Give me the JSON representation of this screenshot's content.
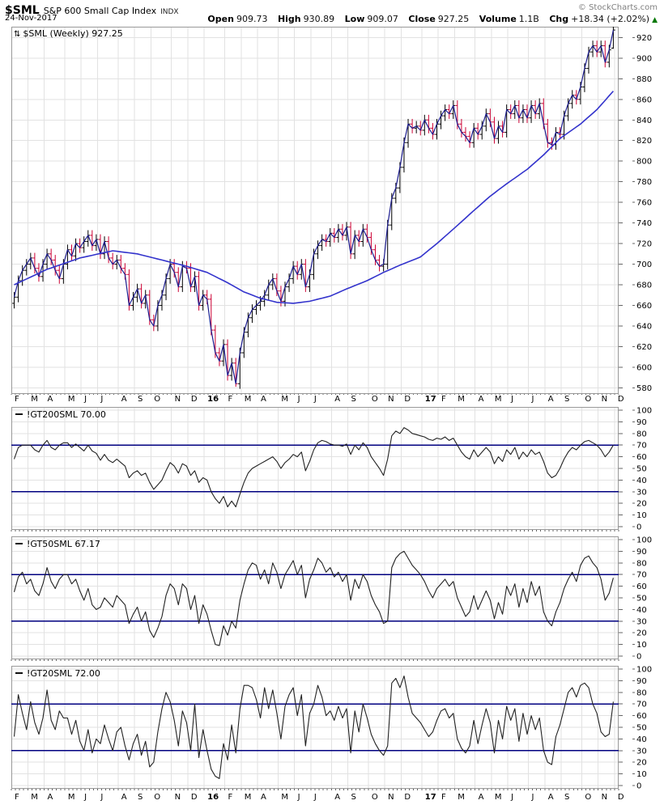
{
  "header": {
    "symbol": "$SML",
    "title": "S&P 600 Small Cap Index",
    "exchange": "INDX",
    "date": "24-Nov-2017",
    "copyright": "© StockCharts.com"
  },
  "quote": {
    "open_label": "Open",
    "open": "909.73",
    "high_label": "High",
    "high": "930.89",
    "low_label": "Low",
    "low": "909.07",
    "close_label": "Close",
    "close": "927.25",
    "volume_label": "Volume",
    "volume": "1.1B",
    "chg_label": "Chg",
    "chg": "+18.34 (+2.02%)",
    "chg_direction": "up",
    "chg_triangle": "▲"
  },
  "colors": {
    "up_bar": "#000000",
    "down_bar": "#cc0033",
    "close_line": "#1c1c8f",
    "ma_line": "#3333cc",
    "threshold_line": "#000080",
    "indicator_line": "#222222",
    "grid": "#e2e2e2",
    "border": "#999999",
    "tick": "#666666",
    "chg_up": "#007700"
  },
  "axis": {
    "month_labels": [
      "F",
      "M",
      "A",
      "M",
      "J",
      "J",
      "A",
      "S",
      "O",
      "N",
      "D",
      "16",
      "F",
      "M",
      "A",
      "M",
      "J",
      "J",
      "A",
      "S",
      "O",
      "N",
      "D",
      "17",
      "F",
      "M",
      "A",
      "M",
      "J",
      "J",
      "A",
      "S",
      "O",
      "N",
      "D"
    ],
    "month_weeks": [
      0,
      4,
      8,
      13,
      17,
      21,
      26,
      30,
      34,
      39,
      43,
      47,
      52,
      56,
      60,
      65,
      69,
      73,
      78,
      82,
      87,
      91,
      95,
      100,
      104,
      108,
      113,
      117,
      121,
      126,
      130,
      134,
      139,
      143,
      147
    ],
    "bold_indices": [
      11,
      23
    ],
    "total_weeks": 148
  },
  "chart_data": [
    {
      "type": "ohlc",
      "name": "$SML",
      "period": "Weekly",
      "legend": "$SML (Weekly) 927.25",
      "legend_icon": "⇅",
      "ylim": [
        574,
        930.5
      ],
      "yticks_min": 580,
      "yticks_max": 920,
      "ytick_step": 20,
      "first_prev_close": 662,
      "bar_spread": 5,
      "closes": [
        668,
        684,
        694,
        700,
        706,
        696,
        688,
        700,
        710,
        704,
        694,
        686,
        700,
        714,
        708,
        720,
        716,
        722,
        728,
        718,
        724,
        710,
        722,
        706,
        700,
        704,
        696,
        690,
        660,
        668,
        676,
        662,
        670,
        646,
        640,
        660,
        670,
        686,
        700,
        692,
        678,
        698,
        696,
        678,
        688,
        660,
        670,
        666,
        636,
        614,
        606,
        622,
        592,
        604,
        584,
        614,
        634,
        648,
        656,
        660,
        664,
        670,
        680,
        686,
        674,
        664,
        678,
        686,
        698,
        690,
        700,
        678,
        690,
        710,
        718,
        724,
        722,
        730,
        726,
        734,
        728,
        736,
        710,
        728,
        722,
        734,
        726,
        714,
        704,
        698,
        700,
        738,
        764,
        774,
        794,
        818,
        836,
        832,
        834,
        830,
        840,
        832,
        826,
        836,
        844,
        850,
        846,
        854,
        836,
        828,
        824,
        818,
        832,
        826,
        834,
        846,
        838,
        822,
        834,
        828,
        850,
        846,
        854,
        842,
        850,
        842,
        854,
        846,
        856,
        836,
        818,
        816,
        828,
        826,
        844,
        856,
        864,
        860,
        872,
        890,
        906,
        912,
        906,
        912,
        896,
        908,
        927.25
      ],
      "last_ohlc": [
        909.73,
        930.89,
        909.07,
        927.25
      ],
      "low_override": {
        "54": 581
      },
      "ma_anchors": [
        [
          0,
          680
        ],
        [
          8,
          695
        ],
        [
          16,
          706
        ],
        [
          24,
          713
        ],
        [
          30,
          710
        ],
        [
          36,
          704
        ],
        [
          42,
          698
        ],
        [
          47,
          692
        ],
        [
          52,
          682
        ],
        [
          56,
          673
        ],
        [
          60,
          667
        ],
        [
          64,
          663
        ],
        [
          68,
          662
        ],
        [
          72,
          664
        ],
        [
          77,
          669
        ],
        [
          81,
          676
        ],
        [
          86,
          684
        ],
        [
          90,
          692
        ],
        [
          94,
          699
        ],
        [
          99,
          707
        ],
        [
          103,
          720
        ],
        [
          107,
          734
        ],
        [
          112,
          752
        ],
        [
          116,
          766
        ],
        [
          120,
          778
        ],
        [
          125,
          792
        ],
        [
          129,
          806
        ],
        [
          133,
          822
        ],
        [
          138,
          836
        ],
        [
          142,
          850
        ],
        [
          146,
          868
        ]
      ]
    },
    {
      "type": "line",
      "name": "!GT200SML",
      "legend": "!GT200SML 70.00",
      "last": 70.0,
      "ylim": [
        0,
        100
      ],
      "ytick_step": 10,
      "hlines": [
        70,
        30
      ],
      "values": [
        58,
        68,
        70,
        70,
        70,
        66,
        64,
        70,
        74,
        68,
        66,
        70,
        72,
        72,
        68,
        71,
        68,
        65,
        70,
        65,
        63,
        57,
        62,
        57,
        55,
        58,
        55,
        52,
        42,
        46,
        48,
        44,
        46,
        38,
        32,
        36,
        40,
        48,
        55,
        52,
        46,
        54,
        52,
        44,
        48,
        38,
        42,
        40,
        30,
        24,
        20,
        26,
        17,
        22,
        17,
        28,
        38,
        46,
        50,
        52,
        54,
        56,
        58,
        60,
        56,
        50,
        55,
        58,
        62,
        60,
        64,
        48,
        56,
        66,
        72,
        74,
        73,
        71,
        70,
        70,
        69,
        71,
        62,
        70,
        66,
        72,
        68,
        60,
        55,
        50,
        44,
        58,
        78,
        82,
        80,
        85,
        83,
        80,
        79,
        78,
        77,
        75,
        74,
        76,
        75,
        77,
        74,
        76,
        70,
        64,
        60,
        58,
        66,
        60,
        64,
        68,
        64,
        54,
        60,
        56,
        66,
        62,
        68,
        58,
        64,
        60,
        66,
        62,
        64,
        56,
        46,
        42,
        44,
        50,
        58,
        64,
        68,
        66,
        70,
        73,
        74,
        72,
        70,
        66,
        60,
        64,
        70
      ]
    },
    {
      "type": "line",
      "name": "!GT50SML",
      "legend": "!GT50SML 67.17",
      "last": 67.17,
      "ylim": [
        0,
        100
      ],
      "ytick_step": 10,
      "hlines": [
        70,
        30
      ],
      "values": [
        55,
        68,
        72,
        62,
        66,
        56,
        52,
        62,
        76,
        64,
        58,
        66,
        70,
        70,
        62,
        66,
        56,
        48,
        58,
        44,
        40,
        42,
        50,
        46,
        42,
        52,
        48,
        44,
        28,
        36,
        42,
        30,
        38,
        22,
        16,
        24,
        34,
        52,
        62,
        58,
        44,
        62,
        58,
        40,
        52,
        28,
        44,
        36,
        22,
        10,
        9,
        26,
        18,
        30,
        24,
        48,
        62,
        74,
        80,
        78,
        66,
        74,
        62,
        80,
        72,
        58,
        70,
        76,
        82,
        70,
        78,
        50,
        66,
        74,
        84,
        80,
        72,
        76,
        68,
        72,
        64,
        70,
        48,
        66,
        58,
        70,
        64,
        52,
        44,
        38,
        28,
        30,
        76,
        84,
        88,
        90,
        84,
        78,
        74,
        70,
        64,
        56,
        50,
        58,
        62,
        66,
        60,
        64,
        50,
        42,
        34,
        38,
        52,
        40,
        48,
        56,
        48,
        32,
        46,
        36,
        60,
        52,
        62,
        42,
        58,
        46,
        64,
        52,
        60,
        38,
        30,
        26,
        38,
        46,
        58,
        66,
        72,
        64,
        78,
        84,
        86,
        80,
        76,
        66,
        48,
        54,
        67.17
      ]
    },
    {
      "type": "line",
      "name": "!GT20SML",
      "legend": "!GT20SML 72.00",
      "last": 72.0,
      "ylim": [
        0,
        100
      ],
      "ytick_step": 10,
      "hlines": [
        70,
        30
      ],
      "values": [
        42,
        78,
        62,
        48,
        72,
        54,
        44,
        58,
        82,
        56,
        48,
        64,
        58,
        58,
        44,
        56,
        38,
        30,
        48,
        28,
        40,
        36,
        52,
        40,
        30,
        46,
        50,
        34,
        22,
        36,
        44,
        26,
        38,
        16,
        20,
        46,
        66,
        80,
        72,
        56,
        34,
        64,
        54,
        30,
        70,
        24,
        48,
        30,
        14,
        8,
        6,
        36,
        22,
        52,
        28,
        66,
        86,
        86,
        84,
        74,
        58,
        84,
        66,
        82,
        62,
        40,
        68,
        78,
        84,
        60,
        78,
        34,
        62,
        70,
        86,
        76,
        60,
        64,
        56,
        68,
        58,
        66,
        28,
        64,
        46,
        70,
        58,
        44,
        36,
        30,
        26,
        34,
        88,
        92,
        84,
        94,
        76,
        62,
        58,
        54,
        48,
        42,
        46,
        56,
        64,
        66,
        58,
        62,
        40,
        32,
        28,
        34,
        56,
        36,
        52,
        66,
        54,
        28,
        56,
        40,
        68,
        56,
        66,
        38,
        62,
        44,
        60,
        48,
        58,
        30,
        20,
        18,
        42,
        52,
        66,
        80,
        84,
        76,
        86,
        88,
        84,
        70,
        62,
        46,
        42,
        44,
        72
      ]
    }
  ]
}
